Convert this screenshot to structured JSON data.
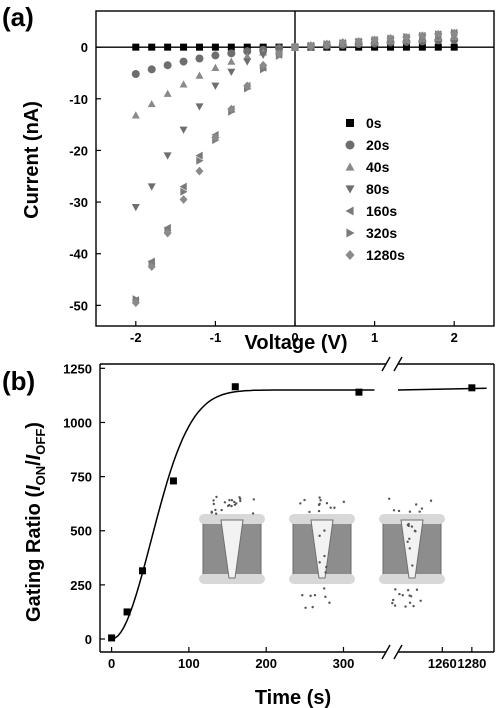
{
  "chart_data": [
    {
      "panel_label": "(a)",
      "type": "scatter",
      "xlabel": "Voltage (V)",
      "ylabel": "Current (nA)",
      "xlim": [
        -2.5,
        2.5
      ],
      "ylim": [
        -54,
        7
      ],
      "xticks": [
        -2,
        -1,
        0,
        1,
        2
      ],
      "yticks": [
        0,
        -10,
        -20,
        -30,
        -40,
        -50
      ],
      "x": [
        -2.0,
        -1.8,
        -1.6,
        -1.4,
        -1.2,
        -1.0,
        -0.8,
        -0.6,
        -0.4,
        -0.2,
        0.0,
        0.2,
        0.4,
        0.6,
        0.8,
        1.0,
        1.2,
        1.4,
        1.6,
        1.8,
        2.0
      ],
      "series": [
        {
          "name": "0s",
          "marker": "square",
          "color": "#000000",
          "values": [
            0,
            0,
            0,
            0,
            0,
            0,
            0,
            0,
            0,
            0,
            0,
            0,
            0,
            0,
            0,
            0,
            0,
            0,
            0,
            0,
            0
          ]
        },
        {
          "name": "20s",
          "marker": "circle",
          "color": "#6e6e6e",
          "values": [
            -5.2,
            -4.3,
            -3.5,
            -2.8,
            -2.2,
            -1.6,
            -1.2,
            -0.8,
            -0.5,
            -0.2,
            0,
            0.1,
            0.3,
            0.4,
            0.6,
            0.7,
            0.9,
            1.0,
            1.1,
            1.3,
            1.4
          ]
        },
        {
          "name": "40s",
          "marker": "triangle-up",
          "color": "#8a8a8a",
          "values": [
            -13.2,
            -11.0,
            -9.0,
            -7.2,
            -5.5,
            -4.0,
            -2.8,
            -1.8,
            -1.0,
            -0.4,
            0,
            0.2,
            0.4,
            0.6,
            0.8,
            1.0,
            1.2,
            1.4,
            1.6,
            1.8,
            2.0
          ]
        },
        {
          "name": "80s",
          "marker": "triangle-down",
          "color": "#6e6e6e",
          "values": [
            -31.0,
            -27.0,
            -21.0,
            -16.0,
            -11.5,
            -7.5,
            -4.8,
            -2.8,
            -1.5,
            -0.6,
            0,
            0.2,
            0.4,
            0.7,
            0.9,
            1.1,
            1.4,
            1.6,
            1.9,
            2.1,
            2.4
          ]
        },
        {
          "name": "160s",
          "marker": "triangle-left",
          "color": "#7a7a7a",
          "values": [
            -49.0,
            -41.5,
            -35.0,
            -27.0,
            -21.0,
            -17.0,
            -12.0,
            -7.5,
            -4.0,
            -1.5,
            0,
            0.3,
            0.6,
            0.8,
            1.1,
            1.4,
            1.6,
            1.9,
            2.2,
            2.5,
            2.8
          ]
        },
        {
          "name": "320s",
          "marker": "triangle-right",
          "color": "#7a7a7a",
          "values": [
            -48.8,
            -42.0,
            -35.5,
            -28.0,
            -22.0,
            -18.0,
            -12.5,
            -8.0,
            -4.3,
            -1.7,
            0,
            0.3,
            0.6,
            0.8,
            1.1,
            1.4,
            1.7,
            2.0,
            2.2,
            2.5,
            2.8
          ]
        },
        {
          "name": "1280s",
          "marker": "diamond",
          "color": "#8a8a8a",
          "values": [
            -49.5,
            -42.5,
            -36.0,
            -29.5,
            -24.0,
            -17.5,
            -12.0,
            -7.5,
            -3.5,
            -1.3,
            0,
            0.3,
            0.6,
            0.9,
            1.1,
            1.4,
            1.7,
            1.9,
            2.2,
            2.5,
            2.7
          ]
        }
      ],
      "legend_position": "right",
      "grid": false
    },
    {
      "panel_label": "(b)",
      "type": "scatter",
      "xlabel": "Time (s)",
      "ylabel_parts": {
        "main": "Gating Ratio (",
        "i1": "I",
        "s1": "ON",
        "slash": "/",
        "i2": "I",
        "s2": "OFF",
        "end": ")"
      },
      "broken_x_axis": true,
      "x_segments": [
        {
          "range": [
            -15,
            355
          ],
          "ticks": [
            0,
            100,
            200,
            300
          ]
        },
        {
          "range": [
            1230,
            1295
          ],
          "ticks": [
            1260,
            1280
          ]
        }
      ],
      "ylim": [
        -60,
        1270
      ],
      "yticks": [
        0,
        250,
        500,
        750,
        1000,
        1250
      ],
      "points": {
        "marker": "square",
        "x": [
          0,
          20,
          40,
          80,
          160,
          320,
          1280
        ],
        "y": [
          5,
          125,
          315,
          730,
          1165,
          1140,
          1160
        ]
      },
      "fit_curve": {
        "type": "sigmoidal-saturation",
        "plateau": 1150
      },
      "inset": {
        "illustration": "three conical nanochannel cartoons with scattered particles"
      },
      "grid": false
    }
  ]
}
